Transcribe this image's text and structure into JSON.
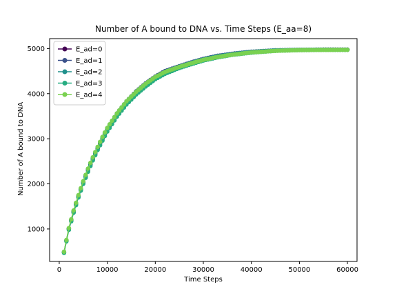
{
  "chart_data": {
    "type": "line",
    "title": "Number of A bound to DNA vs. Time Steps (E_aa=8)",
    "xlabel": "Time Steps",
    "ylabel": "Number of A bound to DNA",
    "xlim": [
      -2000,
      62000
    ],
    "ylim": [
      280,
      5220
    ],
    "x_ticks": [
      0,
      10000,
      20000,
      30000,
      40000,
      50000,
      60000
    ],
    "y_ticks": [
      1000,
      2000,
      3000,
      4000,
      5000
    ],
    "grid": false,
    "legend_position": "top-left",
    "x": [
      1000,
      2000,
      3000,
      4000,
      5000,
      6000,
      7000,
      8000,
      9000,
      10000,
      12000,
      14000,
      16000,
      18000,
      20000,
      22000,
      25000,
      28000,
      30000,
      33000,
      36000,
      40000,
      45000,
      50000,
      55000,
      60000
    ],
    "series": [
      {
        "name": "E_ad=0",
        "color": "#440154",
        "values": [
          480,
          1000,
          1380,
          1720,
          2030,
          2300,
          2550,
          2780,
          3000,
          3200,
          3530,
          3800,
          4020,
          4200,
          4350,
          4470,
          4590,
          4690,
          4750,
          4820,
          4870,
          4920,
          4955,
          4970,
          4975,
          4975
        ]
      },
      {
        "name": "E_ad=1",
        "color": "#3b528b",
        "values": [
          490,
          1010,
          1400,
          1740,
          2050,
          2330,
          2580,
          2810,
          3030,
          3230,
          3560,
          3830,
          4050,
          4230,
          4380,
          4500,
          4610,
          4710,
          4770,
          4840,
          4885,
          4930,
          4960,
          4972,
          4976,
          4976
        ]
      },
      {
        "name": "E_ad=2",
        "color": "#21918c",
        "values": [
          485,
          1005,
          1390,
          1730,
          2040,
          2315,
          2565,
          2795,
          3015,
          3215,
          3545,
          3815,
          4035,
          4215,
          4365,
          4485,
          4600,
          4700,
          4760,
          4830,
          4878,
          4925,
          4958,
          4970,
          4974,
          4974
        ]
      },
      {
        "name": "E_ad=3",
        "color": "#27ad81",
        "values": [
          470,
          980,
          1360,
          1700,
          2000,
          2270,
          2520,
          2750,
          2960,
          3160,
          3490,
          3760,
          3980,
          4160,
          4320,
          4440,
          4570,
          4670,
          4735,
          4805,
          4860,
          4910,
          4950,
          4966,
          4972,
          4973
        ]
      },
      {
        "name": "E_ad=4",
        "color": "#7ad151",
        "values": [
          495,
          1020,
          1410,
          1750,
          2060,
          2340,
          2590,
          2820,
          3040,
          3240,
          3560,
          3830,
          4040,
          4220,
          4370,
          4480,
          4595,
          4690,
          4750,
          4815,
          4865,
          4915,
          4950,
          4966,
          4971,
          4972
        ]
      }
    ]
  }
}
